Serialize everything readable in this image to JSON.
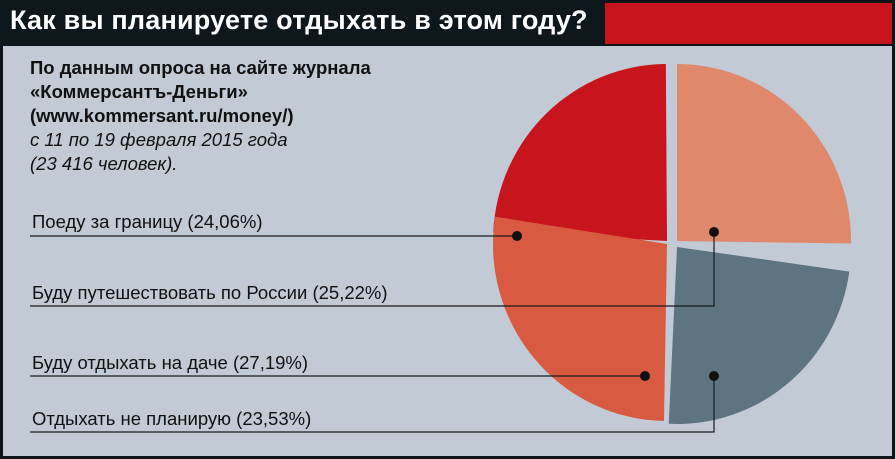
{
  "title": "Как вы планируете отдыхать в этом году?",
  "source": {
    "line1": "По данным опроса на сайте журнала",
    "line2": "«Коммерсантъ-Деньги»",
    "line3": "(www.kommersant.ru/money/)",
    "line4": "с 11 по 19 февраля 2015 года",
    "line5": "(23 416 человек)."
  },
  "colors": {
    "title_bar": "#0e171c",
    "accent_red": "#c8141c",
    "panel": "#c1cad5"
  },
  "chart_data": {
    "type": "pie",
    "title": "Как вы планируете отдыхать в этом году?",
    "slices": [
      {
        "label": "Поеду за границу (24,06%)",
        "value": 24.06,
        "color": "#c8141c"
      },
      {
        "label": "Буду путешествовать по России (25,22%)",
        "value": 25.22,
        "color": "#e0886c"
      },
      {
        "label": "Буду отдыхать на даче (27,19%)",
        "value": 27.19,
        "color": "#d85a40"
      },
      {
        "label": "Отдыхать не планирую (23,53%)",
        "value": 23.53,
        "color": "#5e7480"
      }
    ]
  }
}
